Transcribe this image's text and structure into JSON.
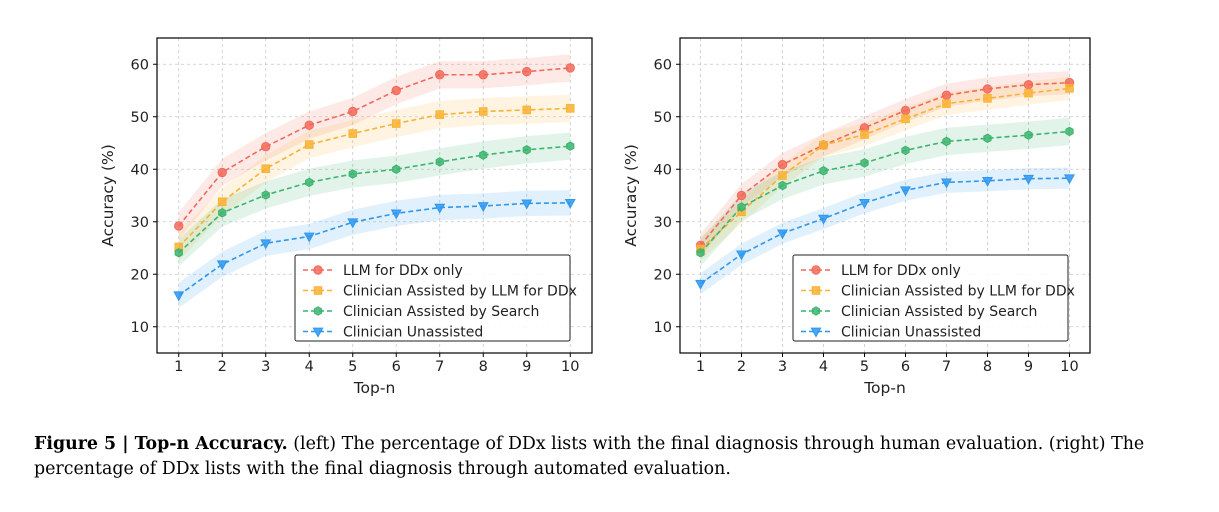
{
  "charts": [
    {
      "type": "line",
      "id": "left",
      "xlabel": "Top-n",
      "ylabel": "Accuracy (%)",
      "x": [
        1,
        2,
        3,
        4,
        5,
        6,
        7,
        8,
        9,
        10
      ],
      "xlim": [
        0.5,
        10.5
      ],
      "ylim": [
        5,
        65
      ],
      "yticks": [
        10,
        20,
        30,
        40,
        50,
        60
      ],
      "grid": true,
      "legend_position": "lower-right",
      "series": [
        {
          "name": "LLM for DDx only",
          "color": "#f26a5a",
          "marker": "circle",
          "values": [
            29.2,
            39.4,
            44.3,
            48.4,
            51.0,
            55.0,
            58.0,
            58.0,
            58.6,
            59.3
          ],
          "band": 2.6
        },
        {
          "name": "Clinician Assisted by LLM for DDx",
          "color": "#f9b234",
          "marker": "square",
          "values": [
            25.2,
            33.8,
            40.1,
            44.7,
            46.8,
            48.7,
            50.4,
            51.0,
            51.3,
            51.6
          ],
          "band": 2.6
        },
        {
          "name": "Clinician Assisted by Search",
          "color": "#3cb46e",
          "marker": "hexagon",
          "values": [
            24.1,
            31.7,
            35.1,
            37.5,
            39.1,
            40.0,
            41.4,
            42.7,
            43.7,
            44.4
          ],
          "band": 2.6
        },
        {
          "name": "Clinician Unassisted",
          "color": "#2e97ee",
          "marker": "triangle-down",
          "values": [
            16.0,
            21.9,
            25.9,
            27.2,
            29.9,
            31.6,
            32.7,
            33.0,
            33.5,
            33.6
          ],
          "band": 2.4
        }
      ]
    },
    {
      "type": "line",
      "id": "right",
      "xlabel": "Top-n",
      "ylabel": "Accuracy (%)",
      "x": [
        1,
        2,
        3,
        4,
        5,
        6,
        7,
        8,
        9,
        10
      ],
      "xlim": [
        0.5,
        10.5
      ],
      "ylim": [
        5,
        65
      ],
      "yticks": [
        10,
        20,
        30,
        40,
        50,
        60
      ],
      "grid": true,
      "legend_position": "lower-right",
      "series": [
        {
          "name": "LLM for DDx only",
          "color": "#f26a5a",
          "marker": "circle",
          "values": [
            25.5,
            35.0,
            40.9,
            44.6,
            47.9,
            51.2,
            54.1,
            55.3,
            56.1,
            56.5
          ],
          "band": 2.2
        },
        {
          "name": "Clinician Assisted by LLM for DDx",
          "color": "#f9b234",
          "marker": "square",
          "values": [
            24.8,
            31.9,
            38.8,
            44.6,
            46.6,
            49.6,
            52.5,
            53.5,
            54.5,
            55.4
          ],
          "band": 2.2
        },
        {
          "name": "Clinician Assisted by Search",
          "color": "#3cb46e",
          "marker": "hexagon",
          "values": [
            24.1,
            32.8,
            36.9,
            39.7,
            41.2,
            43.6,
            45.3,
            45.9,
            46.5,
            47.2
          ],
          "band": 2.6
        },
        {
          "name": "Clinician Unassisted",
          "color": "#2e97ee",
          "marker": "triangle-down",
          "values": [
            18.2,
            23.8,
            27.8,
            30.6,
            33.6,
            36.0,
            37.5,
            37.8,
            38.2,
            38.3
          ],
          "band": 2.0
        }
      ]
    }
  ],
  "caption": {
    "label": "Figure 5",
    "separator": " | ",
    "title": "Top-n Accuracy.",
    "text": " (left) The percentage of DDx lists with the final diagnosis through human evaluation. (right) The percentage of DDx lists with the final diagnosis through automated evaluation."
  }
}
